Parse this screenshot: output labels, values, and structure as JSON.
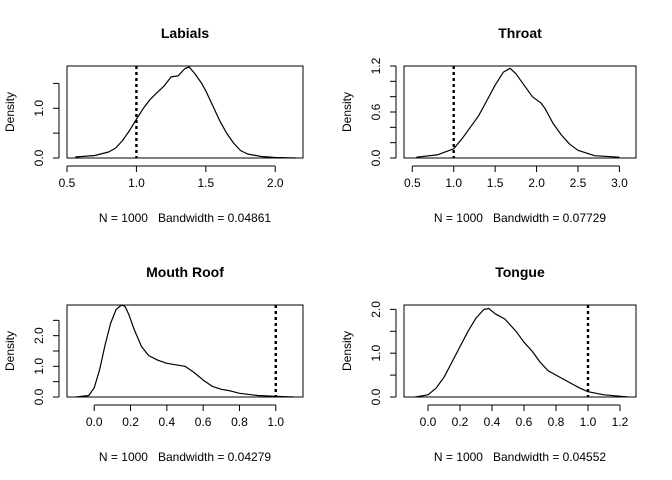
{
  "chart_data": [
    {
      "type": "line",
      "title": "Labials",
      "ylabel": "Density",
      "xlabel": "N = 1000   Bandwidth = 0.04861",
      "xlim": [
        0.5,
        2.2
      ],
      "ylim": [
        0,
        1.85
      ],
      "xticks": [
        0.5,
        1.0,
        1.5,
        2.0
      ],
      "xtick_labels": [
        "0.5",
        "1.0",
        "1.5",
        "2.0"
      ],
      "yticks": [
        0.0,
        0.5,
        1.0,
        1.5
      ],
      "ytick_labels": [
        "0.0",
        "",
        "1.0",
        ""
      ],
      "vline": 1.0,
      "series": [
        {
          "x": [
            0.56,
            0.7,
            0.8,
            0.85,
            0.9,
            0.95,
            1.0,
            1.05,
            1.1,
            1.15,
            1.2,
            1.25,
            1.3,
            1.35,
            1.38,
            1.42,
            1.47,
            1.5,
            1.55,
            1.6,
            1.65,
            1.7,
            1.75,
            1.8,
            1.9,
            2.0,
            2.15
          ],
          "y": [
            0.02,
            0.05,
            0.12,
            0.2,
            0.35,
            0.55,
            0.78,
            1.0,
            1.18,
            1.32,
            1.45,
            1.63,
            1.65,
            1.8,
            1.83,
            1.7,
            1.5,
            1.35,
            1.05,
            0.75,
            0.5,
            0.3,
            0.15,
            0.08,
            0.03,
            0.01,
            0.0
          ]
        }
      ]
    },
    {
      "type": "line",
      "title": "Throat",
      "ylabel": "Density",
      "xlabel": "N = 1000   Bandwidth = 0.07729",
      "xlim": [
        0.4,
        3.2
      ],
      "ylim": [
        0,
        1.2
      ],
      "xticks": [
        0.5,
        1.0,
        1.5,
        2.0,
        2.5,
        3.0
      ],
      "xtick_labels": [
        "0.5",
        "1.0",
        "1.5",
        "2.0",
        "2.5",
        "3.0"
      ],
      "yticks": [
        0.0,
        0.2,
        0.4,
        0.6,
        0.8,
        1.0,
        1.2
      ],
      "ytick_labels": [
        "0.0",
        "",
        "",
        "0.6",
        "",
        "",
        "1.2"
      ],
      "vline": 1.0,
      "series": [
        {
          "x": [
            0.55,
            0.8,
            1.0,
            1.1,
            1.2,
            1.3,
            1.4,
            1.5,
            1.6,
            1.68,
            1.75,
            1.85,
            1.95,
            2.05,
            2.1,
            2.2,
            2.3,
            2.4,
            2.5,
            2.7,
            3.0
          ],
          "y": [
            0.01,
            0.04,
            0.12,
            0.25,
            0.4,
            0.55,
            0.75,
            0.95,
            1.12,
            1.17,
            1.1,
            0.95,
            0.8,
            0.72,
            0.65,
            0.45,
            0.3,
            0.18,
            0.1,
            0.03,
            0.01
          ]
        }
      ]
    },
    {
      "type": "line",
      "title": "Mouth Roof",
      "ylabel": "Density",
      "xlabel": "N = 1000   Bandwidth = 0.04279",
      "xlim": [
        -0.15,
        1.15
      ],
      "ylim": [
        0,
        3.0
      ],
      "xticks": [
        0.0,
        0.2,
        0.4,
        0.6,
        0.8,
        1.0
      ],
      "xtick_labels": [
        "0.0",
        "0.2",
        "0.4",
        "0.6",
        "0.8",
        "1.0"
      ],
      "yticks": [
        0.0,
        0.5,
        1.0,
        1.5,
        2.0,
        2.5
      ],
      "ytick_labels": [
        "0.0",
        "",
        "1.0",
        "",
        "2.0",
        ""
      ],
      "vline": 1.0,
      "series": [
        {
          "x": [
            -0.1,
            -0.03,
            0.0,
            0.03,
            0.06,
            0.09,
            0.12,
            0.15,
            0.17,
            0.19,
            0.22,
            0.26,
            0.3,
            0.35,
            0.4,
            0.45,
            0.5,
            0.55,
            0.6,
            0.65,
            0.7,
            0.75,
            0.8,
            0.9,
            1.0,
            1.1
          ],
          "y": [
            0.0,
            0.05,
            0.3,
            0.9,
            1.7,
            2.4,
            2.85,
            3.0,
            2.95,
            2.7,
            2.2,
            1.65,
            1.35,
            1.2,
            1.1,
            1.05,
            1.0,
            0.8,
            0.55,
            0.35,
            0.25,
            0.2,
            0.12,
            0.05,
            0.02,
            0.0
          ]
        }
      ]
    },
    {
      "type": "line",
      "title": "Tongue",
      "ylabel": "Density",
      "xlabel": "N = 1000   Bandwidth = 0.04552",
      "xlim": [
        -0.15,
        1.3
      ],
      "ylim": [
        0,
        2.1
      ],
      "xticks": [
        0.0,
        0.2,
        0.4,
        0.6,
        0.8,
        1.0,
        1.2
      ],
      "xtick_labels": [
        "0.0",
        "0.2",
        "0.4",
        "0.6",
        "0.8",
        "1.0",
        "1.2"
      ],
      "yticks": [
        0.0,
        0.5,
        1.0,
        1.5,
        2.0
      ],
      "ytick_labels": [
        "0.0",
        "",
        "1.0",
        "",
        "2.0"
      ],
      "vline": 1.0,
      "series": [
        {
          "x": [
            -0.08,
            0.0,
            0.05,
            0.1,
            0.15,
            0.2,
            0.25,
            0.3,
            0.35,
            0.38,
            0.42,
            0.48,
            0.55,
            0.6,
            0.65,
            0.7,
            0.75,
            0.8,
            0.85,
            0.9,
            0.95,
            1.0,
            1.1,
            1.25
          ],
          "y": [
            0.0,
            0.05,
            0.2,
            0.45,
            0.8,
            1.15,
            1.5,
            1.8,
            2.0,
            2.02,
            1.9,
            1.78,
            1.5,
            1.25,
            1.05,
            0.8,
            0.6,
            0.5,
            0.4,
            0.3,
            0.2,
            0.12,
            0.05,
            0.0
          ]
        }
      ]
    }
  ]
}
